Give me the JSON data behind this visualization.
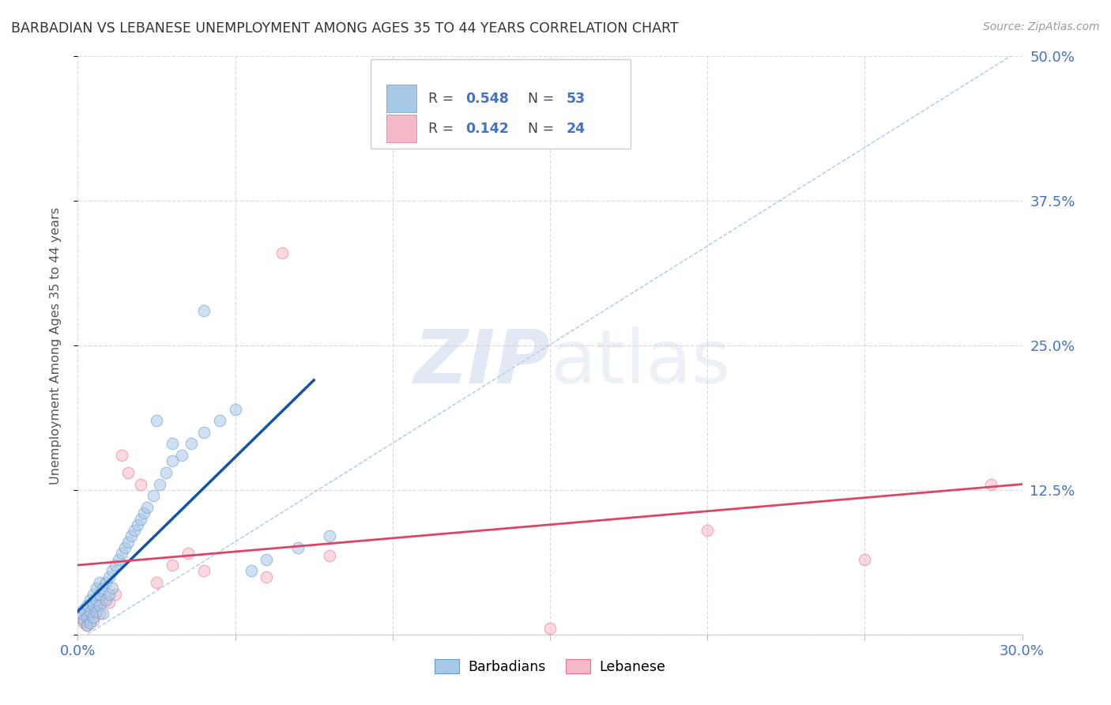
{
  "title": "BARBADIAN VS LEBANESE UNEMPLOYMENT AMONG AGES 35 TO 44 YEARS CORRELATION CHART",
  "source": "Source: ZipAtlas.com",
  "ylabel": "Unemployment Among Ages 35 to 44 years",
  "xlim": [
    0.0,
    0.3
  ],
  "ylim": [
    0.0,
    0.5
  ],
  "background_color": "#ffffff",
  "grid_color": "#d9d9d9",
  "barbadian_color": "#a8c8e8",
  "lebanese_color": "#f5b8c8",
  "barbadian_edge_color": "#6699cc",
  "lebanese_edge_color": "#e87090",
  "barbadian_line_color": "#1155aa",
  "lebanese_line_color": "#dd4466",
  "diag_line_color": "#99bbdd",
  "title_color": "#333333",
  "axis_label_color": "#555555",
  "tick_label_color": "#4472c4",
  "source_color": "#999999",
  "legend_label1": "Barbadians",
  "legend_label2": "Lebanese",
  "marker_size": 110,
  "alpha": 0.55,
  "barbadian_x": [
    0.001,
    0.002,
    0.002,
    0.003,
    0.003,
    0.003,
    0.004,
    0.004,
    0.004,
    0.005,
    0.005,
    0.005,
    0.006,
    0.006,
    0.006,
    0.007,
    0.007,
    0.007,
    0.008,
    0.008,
    0.009,
    0.009,
    0.01,
    0.01,
    0.011,
    0.011,
    0.012,
    0.013,
    0.014,
    0.015,
    0.016,
    0.017,
    0.018,
    0.019,
    0.02,
    0.021,
    0.022,
    0.024,
    0.026,
    0.028,
    0.03,
    0.033,
    0.036,
    0.04,
    0.045,
    0.05,
    0.055,
    0.06,
    0.07,
    0.08,
    0.04,
    0.025,
    0.03
  ],
  "barbadian_y": [
    0.018,
    0.012,
    0.022,
    0.015,
    0.025,
    0.008,
    0.02,
    0.03,
    0.01,
    0.025,
    0.035,
    0.015,
    0.03,
    0.04,
    0.02,
    0.035,
    0.045,
    0.025,
    0.04,
    0.018,
    0.045,
    0.03,
    0.05,
    0.035,
    0.055,
    0.04,
    0.06,
    0.065,
    0.07,
    0.075,
    0.08,
    0.085,
    0.09,
    0.095,
    0.1,
    0.105,
    0.11,
    0.12,
    0.13,
    0.14,
    0.15,
    0.155,
    0.165,
    0.175,
    0.185,
    0.195,
    0.055,
    0.065,
    0.075,
    0.085,
    0.28,
    0.185,
    0.165
  ],
  "lebanese_x": [
    0.001,
    0.002,
    0.003,
    0.004,
    0.005,
    0.006,
    0.007,
    0.008,
    0.01,
    0.012,
    0.014,
    0.016,
    0.02,
    0.025,
    0.03,
    0.04,
    0.06,
    0.08,
    0.15,
    0.2,
    0.25,
    0.29,
    0.065,
    0.035
  ],
  "lebanese_y": [
    0.015,
    0.01,
    0.008,
    0.02,
    0.012,
    0.025,
    0.018,
    0.03,
    0.028,
    0.035,
    0.155,
    0.14,
    0.13,
    0.045,
    0.06,
    0.055,
    0.05,
    0.068,
    0.005,
    0.09,
    0.065,
    0.13,
    0.33,
    0.07
  ],
  "barb_line_x": [
    0.0,
    0.075
  ],
  "barb_line_y": [
    0.02,
    0.22
  ],
  "leb_line_x": [
    0.0,
    0.3
  ],
  "leb_line_y": [
    0.06,
    0.13
  ]
}
